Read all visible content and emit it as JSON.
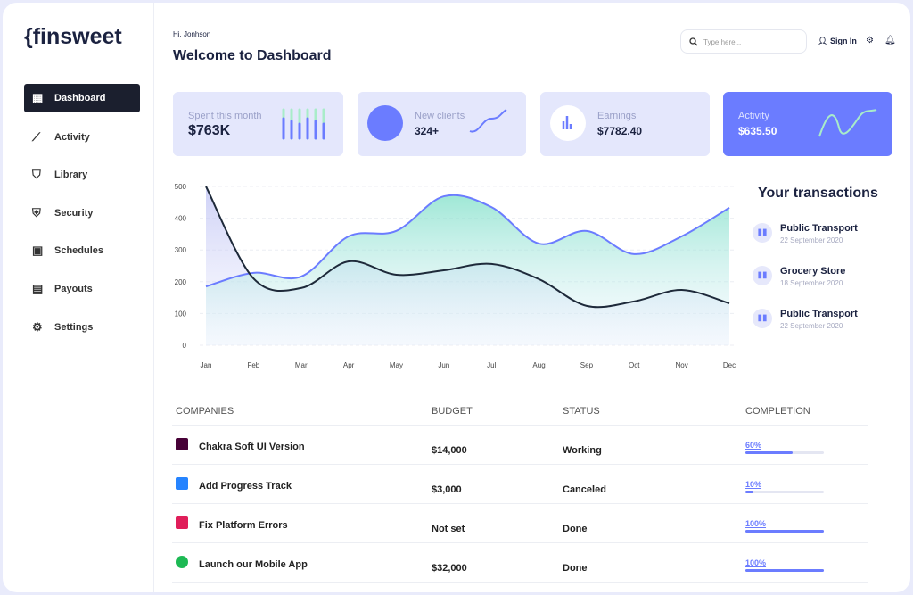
{
  "sidebar": {
    "logo": "{finsweet",
    "nav": [
      "Dashboard",
      "Activity",
      "Library",
      "Security",
      "Schedules",
      "Payouts",
      "Settings"
    ]
  },
  "header": {
    "greeting": "Hi, Jonhson",
    "title": "Welcome to Dashboard",
    "search_placeholder": "Type here...",
    "sign_in": "Sign In"
  },
  "cards": [
    {
      "label": "Spent this month",
      "value": "$763K"
    },
    {
      "label": "New clients",
      "value": "324+"
    },
    {
      "label": "Earnings",
      "value": "$7782.40"
    },
    {
      "label": "Activity",
      "value": "$635.50"
    }
  ],
  "chart_data": {
    "type": "area",
    "categories": [
      "Jan",
      "Feb",
      "Mar",
      "Apr",
      "May",
      "Jun",
      "Jul",
      "Aug",
      "Sep",
      "Oct",
      "Nov",
      "Dec"
    ],
    "series": [
      {
        "color": "#6b7cff",
        "values": [
          185,
          228,
          216,
          343,
          360,
          469,
          435,
          320,
          360,
          287,
          343,
          433
        ]
      },
      {
        "color": "#1e2a3a",
        "values": [
          500,
          210,
          180,
          264,
          222,
          236,
          256,
          208,
          124,
          138,
          174,
          132
        ]
      }
    ],
    "ylim": [
      0,
      500
    ],
    "yticks": [
      0,
      100,
      200,
      300,
      400,
      500
    ],
    "grid": true
  },
  "transactions": {
    "title": "Your transactions",
    "items": [
      {
        "name": "Public Transport",
        "date": "22 September 2020"
      },
      {
        "name": "Grocery Store",
        "date": "18 September 2020"
      },
      {
        "name": "Public Transport",
        "date": "22 September 2020"
      }
    ]
  },
  "table": {
    "headers": [
      "COMPANIES",
      "BUDGET",
      "STATUS",
      "COMPLETION"
    ],
    "rows": [
      {
        "company": "Chakra Soft UI Version",
        "budget": "$14,000",
        "status": "Working",
        "completion": 60,
        "completion_label": "60%"
      },
      {
        "company": "Add Progress Track",
        "budget": "$3,000",
        "status": "Canceled",
        "completion": 10,
        "completion_label": "10%"
      },
      {
        "company": "Fix Platform Errors",
        "budget": "Not set",
        "status": "Done",
        "completion": 100,
        "completion_label": "100%"
      },
      {
        "company": "Launch our Mobile App",
        "budget": "$32,000",
        "status": "Done",
        "completion": 100,
        "completion_label": "100%"
      }
    ]
  }
}
